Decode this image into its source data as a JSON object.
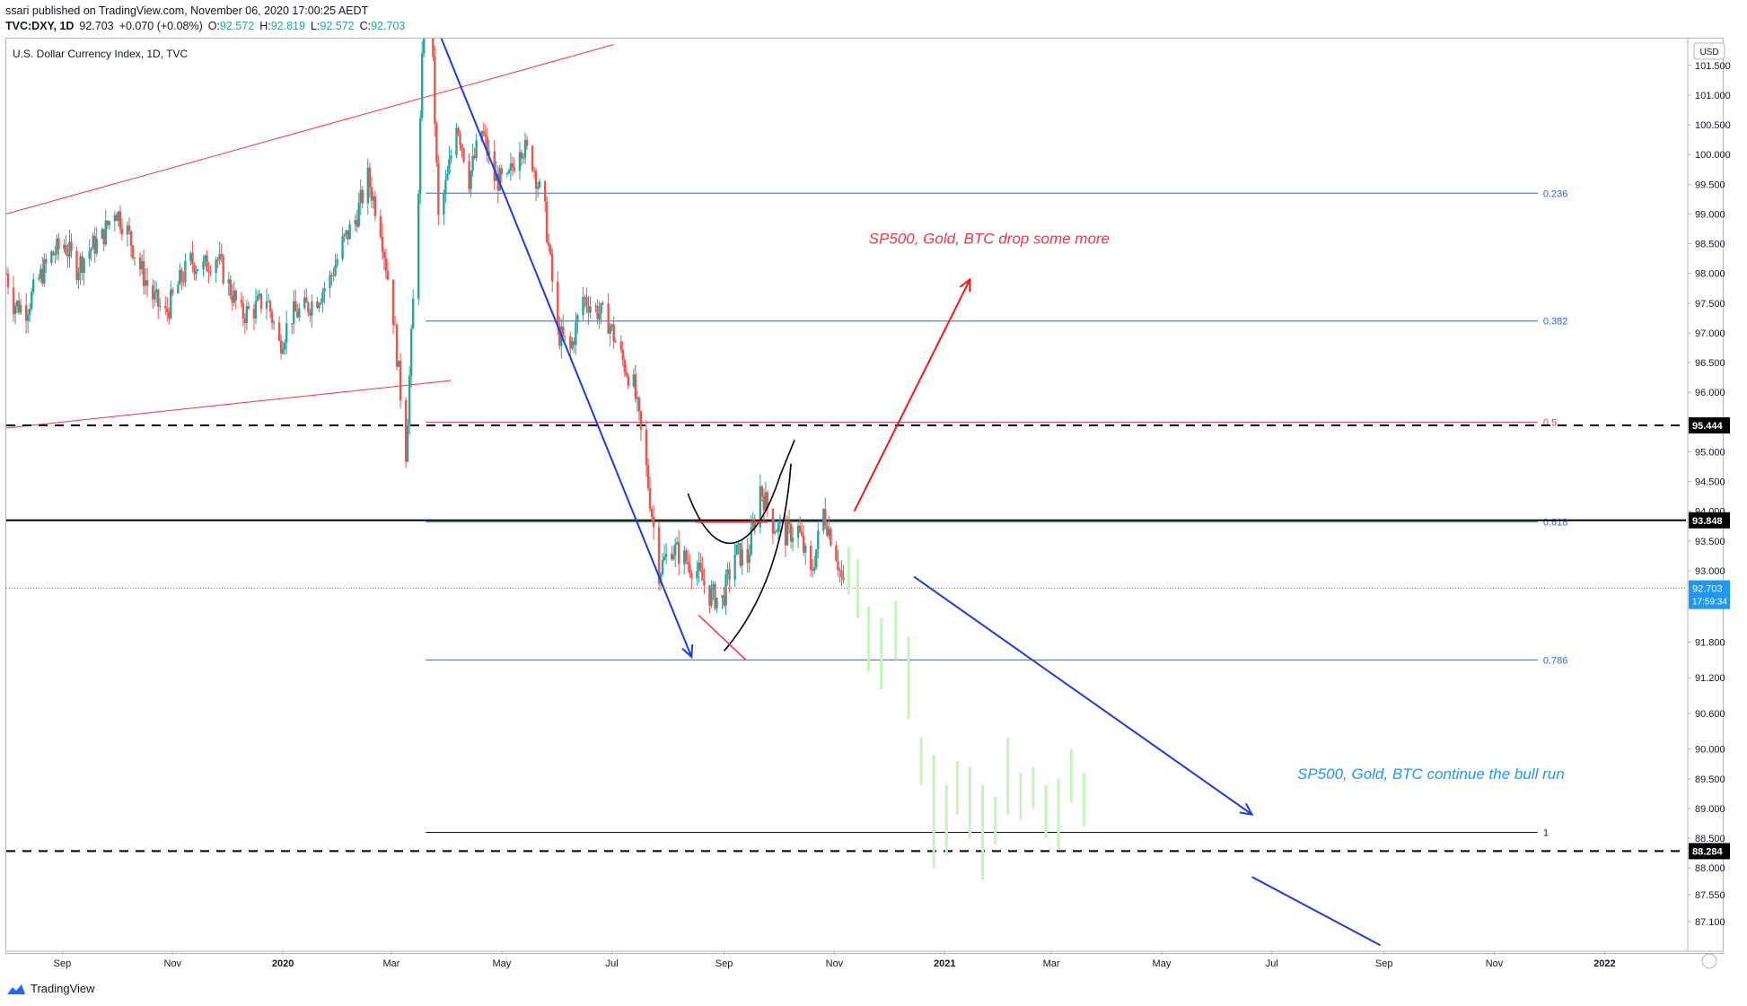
{
  "header": {
    "line1": "ssari published on TradingView.com, November 06, 2020 17:00:25 AEDT",
    "symbol": "TVC:DXY, 1D",
    "last": "92.703",
    "change": "+0.070 (+0.08%)",
    "o_label": "O:",
    "o": "92.572",
    "h_label": "H:",
    "h": "92.819",
    "l_label": "L:",
    "l": "92.572",
    "c_label": "C:",
    "c": "92.703"
  },
  "footer": {
    "brand": "TradingView"
  },
  "colors": {
    "up": "#26a69a",
    "down": "#ef5350",
    "fib": "#2962ff",
    "trend": "#f23645",
    "arrow_blue": "#1e3ddb",
    "arrow_red": "#f01818",
    "ghost": "#c8f2c0",
    "price_tag": "#2196f3",
    "text_red": "#f23645",
    "text_blue": "#2196f3"
  },
  "chart_data": {
    "type": "candlestick",
    "title": "U.S. Dollar Currency Index, 1D, TVC",
    "currency_button": "USD",
    "y_ticks": [
      "101.500",
      "101.000",
      "100.500",
      "100.000",
      "99.500",
      "99.000",
      "98.500",
      "98.000",
      "97.500",
      "97.000",
      "96.500",
      "96.000",
      "95.000",
      "94.500",
      "94.000",
      "93.500",
      "93.000",
      "91.800",
      "91.200",
      "90.600",
      "90.000",
      "89.500",
      "89.000",
      "88.500",
      "88.000",
      "87.550",
      "87.100"
    ],
    "x_ticks": [
      {
        "label": "Sep",
        "x": "2019-09-01"
      },
      {
        "label": "Nov",
        "x": "2019-11-01"
      },
      {
        "label": "2020",
        "x": "2020-01-01"
      },
      {
        "label": "Mar",
        "x": "2020-03-01"
      },
      {
        "label": "May",
        "x": "2020-05-01"
      },
      {
        "label": "Jul",
        "x": "2020-07-01"
      },
      {
        "label": "Sep",
        "x": "2020-09-01"
      },
      {
        "label": "Nov",
        "x": "2020-11-01"
      },
      {
        "label": "2021",
        "x": "2021-01-01"
      },
      {
        "label": "Mar",
        "x": "2021-03-01"
      },
      {
        "label": "May",
        "x": "2021-05-01"
      },
      {
        "label": "Jul",
        "x": "2021-07-01"
      },
      {
        "label": "Sep",
        "x": "2021-09-01"
      },
      {
        "label": "Nov",
        "x": "2021-11-01"
      },
      {
        "label": "2022",
        "x": "2022-01-01"
      }
    ],
    "x_range": [
      "2019-08-01",
      "2022-02-15"
    ],
    "y_range": [
      86.6,
      101.95
    ],
    "last_price": {
      "value": 92.703,
      "label": "92.703",
      "countdown": "17:59:34"
    },
    "horizontal_levels": [
      {
        "value": 95.444,
        "label": "95.444",
        "style": "dashed"
      },
      {
        "value": 93.848,
        "label": "93.848",
        "style": "solid"
      },
      {
        "value": 88.284,
        "label": "88.284",
        "style": "dashed"
      }
    ],
    "fib_levels": [
      {
        "label": "0.236",
        "value": 99.35
      },
      {
        "label": "0.382",
        "value": 97.2
      },
      {
        "label": "0.5",
        "value": 95.5
      },
      {
        "label": "0.618",
        "value": 93.82
      },
      {
        "label": "0.786",
        "value": 91.5
      },
      {
        "label": "1",
        "value": 88.6
      }
    ],
    "annotations": [
      {
        "text": "SP500, Gold, BTC drop some more",
        "color": "red"
      },
      {
        "text": "SP500, Gold, BTC continue the bull run",
        "color": "blue"
      }
    ],
    "close_path": [
      [
        "2019-08-01",
        98.0
      ],
      [
        "2019-08-05",
        97.5
      ],
      [
        "2019-08-12",
        97.4
      ],
      [
        "2019-08-19",
        97.9
      ],
      [
        "2019-08-26",
        98.3
      ],
      [
        "2019-09-02",
        98.5
      ],
      [
        "2019-09-09",
        98.1
      ],
      [
        "2019-09-16",
        98.4
      ],
      [
        "2019-09-23",
        98.6
      ],
      [
        "2019-09-30",
        99.1
      ],
      [
        "2019-10-07",
        98.7
      ],
      [
        "2019-10-14",
        98.1
      ],
      [
        "2019-10-21",
        97.6
      ],
      [
        "2019-10-28",
        97.3
      ],
      [
        "2019-11-04",
        97.8
      ],
      [
        "2019-11-11",
        98.2
      ],
      [
        "2019-11-18",
        98.1
      ],
      [
        "2019-11-25",
        98.3
      ],
      [
        "2019-12-02",
        97.8
      ],
      [
        "2019-12-09",
        97.3
      ],
      [
        "2019-12-16",
        97.4
      ],
      [
        "2019-12-23",
        97.6
      ],
      [
        "2019-12-30",
        96.8
      ],
      [
        "2020-01-06",
        97.3
      ],
      [
        "2020-01-13",
        97.4
      ],
      [
        "2020-01-20",
        97.6
      ],
      [
        "2020-01-27",
        97.9
      ],
      [
        "2020-02-03",
        98.5
      ],
      [
        "2020-02-10",
        98.9
      ],
      [
        "2020-02-17",
        99.6
      ],
      [
        "2020-02-24",
        98.8
      ],
      [
        "2020-03-02",
        97.3
      ],
      [
        "2020-03-09",
        95.0
      ],
      [
        "2020-03-13",
        97.5
      ],
      [
        "2020-03-16",
        99.5
      ],
      [
        "2020-03-19",
        102.5
      ],
      [
        "2020-03-23",
        102.3
      ],
      [
        "2020-03-27",
        98.9
      ],
      [
        "2020-04-01",
        99.6
      ],
      [
        "2020-04-06",
        100.6
      ],
      [
        "2020-04-13",
        99.6
      ],
      [
        "2020-04-20",
        100.4
      ],
      [
        "2020-04-27",
        99.6
      ],
      [
        "2020-05-04",
        99.5
      ],
      [
        "2020-05-11",
        100.2
      ],
      [
        "2020-05-18",
        99.9
      ],
      [
        "2020-05-25",
        99.0
      ],
      [
        "2020-06-01",
        97.0
      ],
      [
        "2020-06-08",
        96.7
      ],
      [
        "2020-06-15",
        97.6
      ],
      [
        "2020-06-22",
        97.4
      ],
      [
        "2020-06-29",
        97.2
      ],
      [
        "2020-07-06",
        96.6
      ],
      [
        "2020-07-13",
        96.1
      ],
      [
        "2020-07-20",
        94.7
      ],
      [
        "2020-07-27",
        93.0
      ],
      [
        "2020-08-03",
        93.4
      ],
      [
        "2020-08-10",
        93.2
      ],
      [
        "2020-08-17",
        93.0
      ],
      [
        "2020-08-24",
        92.6
      ],
      [
        "2020-08-31",
        92.5
      ],
      [
        "2020-09-07",
        93.3
      ],
      [
        "2020-09-14",
        93.2
      ],
      [
        "2020-09-21",
        94.4
      ],
      [
        "2020-09-28",
        93.8
      ],
      [
        "2020-10-05",
        93.6
      ],
      [
        "2020-10-12",
        93.7
      ],
      [
        "2020-10-19",
        92.9
      ],
      [
        "2020-10-26",
        94.0
      ],
      [
        "2020-11-02",
        93.3
      ],
      [
        "2020-11-06",
        92.7
      ]
    ],
    "candle_noise": 0.22,
    "ghost_bars": [
      [
        "2020-11-09",
        93.4,
        92.6
      ],
      [
        "2020-11-14",
        93.2,
        92.2
      ],
      [
        "2020-11-20",
        92.4,
        91.3
      ],
      [
        "2020-11-27",
        92.2,
        91.0
      ],
      [
        "2020-12-05",
        92.5,
        91.5
      ],
      [
        "2020-12-12",
        91.9,
        90.5
      ],
      [
        "2020-12-19",
        90.2,
        89.4
      ],
      [
        "2020-12-26",
        89.9,
        88.0
      ],
      [
        "2021-01-02",
        89.4,
        88.2
      ],
      [
        "2021-01-08",
        89.8,
        88.9
      ],
      [
        "2021-01-15",
        89.7,
        88.5
      ],
      [
        "2021-01-22",
        89.4,
        87.8
      ],
      [
        "2021-01-29",
        89.2,
        88.4
      ],
      [
        "2021-02-05",
        90.2,
        88.9
      ],
      [
        "2021-02-12",
        89.6,
        88.8
      ],
      [
        "2021-02-19",
        89.7,
        89.0
      ],
      [
        "2021-02-26",
        89.4,
        88.5
      ],
      [
        "2021-03-05",
        89.5,
        88.3
      ],
      [
        "2021-03-12",
        90.0,
        89.1
      ],
      [
        "2021-03-19",
        89.6,
        88.7
      ]
    ]
  }
}
